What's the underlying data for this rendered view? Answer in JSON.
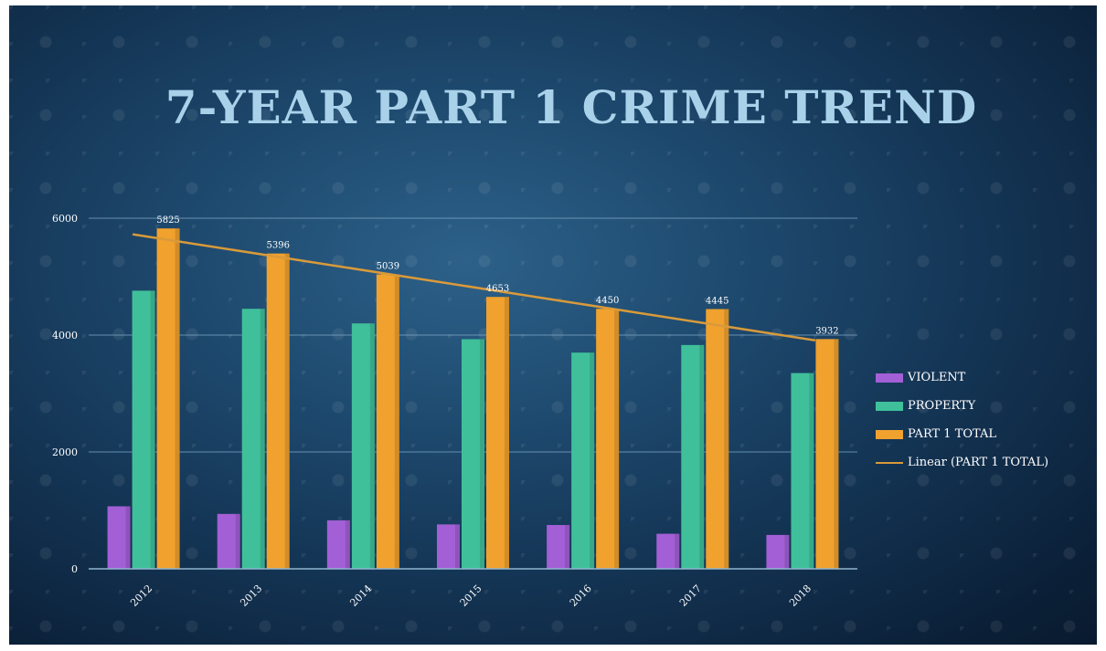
{
  "chart_data": {
    "type": "bar",
    "title": "7-YEAR PART 1 CRIME TREND",
    "categories": [
      "2012",
      "2013",
      "2014",
      "2015",
      "2016",
      "2017",
      "2018"
    ],
    "series": [
      {
        "name": "VIOLENT",
        "color": "#a35fd6",
        "values": [
          1070,
          940,
          830,
          760,
          750,
          600,
          580
        ]
      },
      {
        "name": "PROPERTY",
        "color": "#3fc09a",
        "values": [
          4760,
          4450,
          4200,
          3930,
          3700,
          3830,
          3350
        ]
      },
      {
        "name": "PART 1 TOTAL",
        "color": "#f0a12e",
        "values": [
          5825,
          5396,
          5039,
          4653,
          4450,
          4445,
          3932
        ]
      }
    ],
    "data_labels": [
      "5825",
      "5396",
      "5039",
      "4653",
      "4450",
      "4445",
      "3932"
    ],
    "trendline": {
      "name": "Linear (PART 1 TOTAL)",
      "color": "#d99a3a",
      "series": "PART 1 TOTAL"
    },
    "ylim": [
      0,
      6000
    ],
    "yticks": [
      "0",
      "2000",
      "4000",
      "6000"
    ],
    "grid": true,
    "legend_position": "right",
    "xlabel": "",
    "ylabel": ""
  }
}
